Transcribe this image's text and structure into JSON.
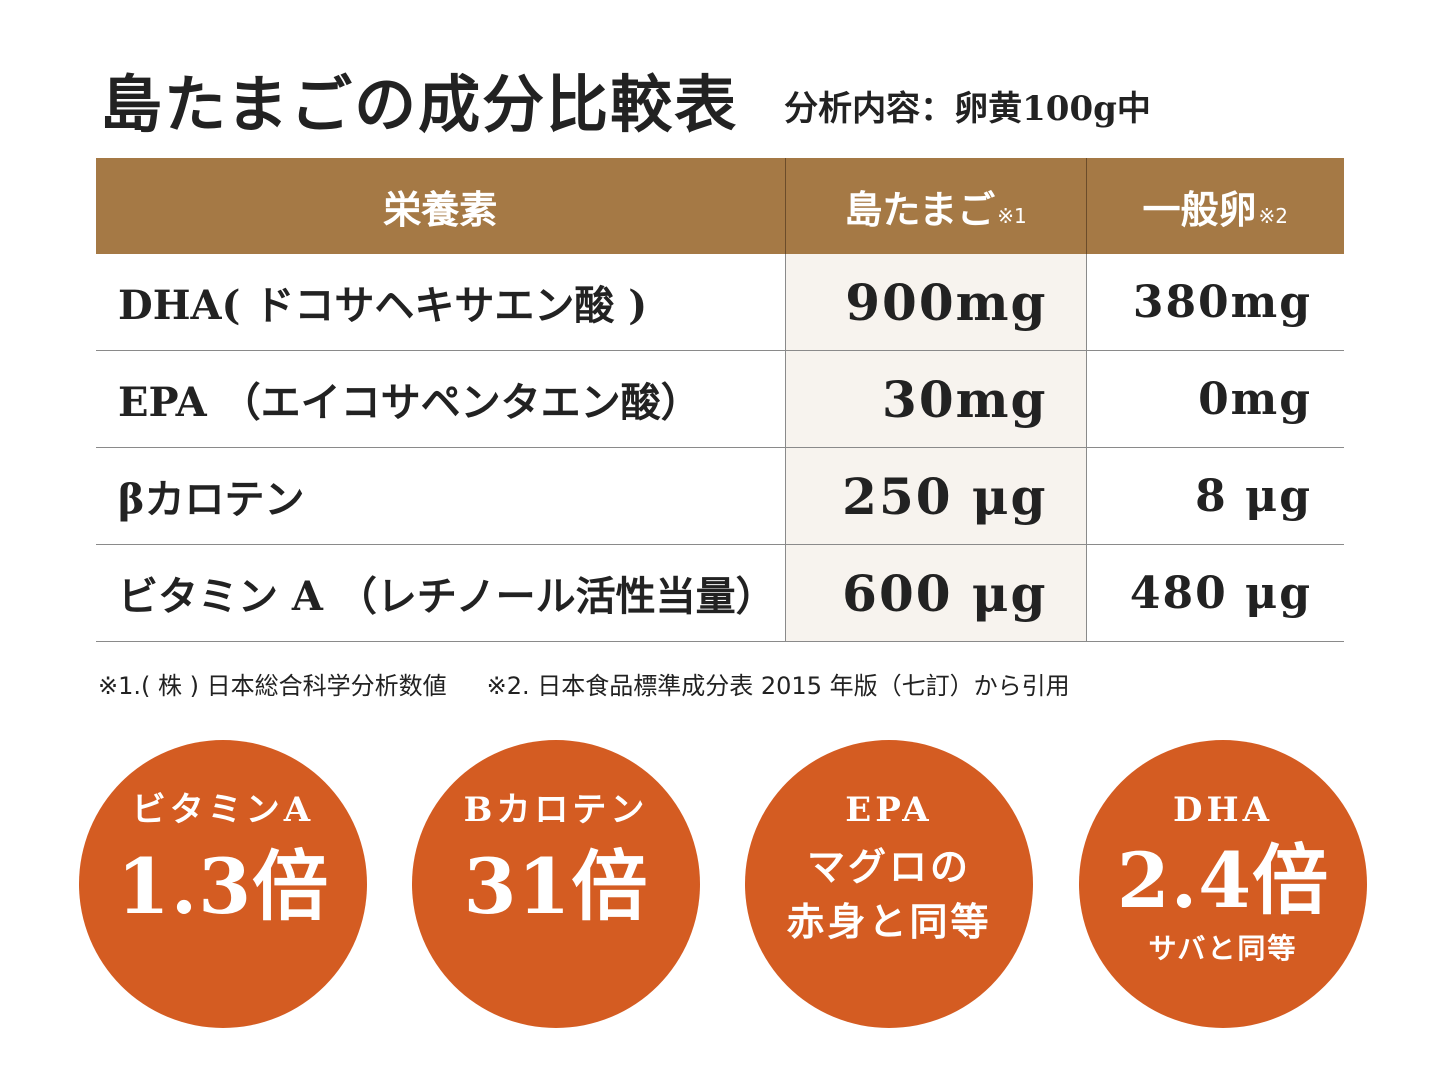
{
  "title": {
    "main": "島たまごの成分比較表",
    "sub": "分析内容：卵黄100g中"
  },
  "table": {
    "headers": [
      {
        "label": "栄養素",
        "mark": ""
      },
      {
        "label": "島たまご",
        "mark": "※1"
      },
      {
        "label": "一般卵",
        "mark": "※2"
      }
    ],
    "rows": [
      {
        "nutrient": "DHA( ドコサヘキサエン酸 )",
        "shima": "900mg",
        "general": "380mg"
      },
      {
        "nutrient": "EPA （エイコサペンタエン酸）",
        "shima": "30mg",
        "general": "0mg"
      },
      {
        "nutrient": "βカロテン",
        "shima": "250 μg",
        "general": "8 μg"
      },
      {
        "nutrient": "ビタミン A （レチノール活性当量）",
        "shima": "600 μg",
        "general": "480 μg"
      }
    ]
  },
  "footnotes": [
    "※1.( 株 ) 日本総合科学分析数値",
    "※2. 日本食品標準成分表 2015 年版（七訂）から引用"
  ],
  "highlights": [
    {
      "label": "ビタミンA",
      "value": "1.3倍"
    },
    {
      "label": "Bカロテン",
      "value": "31倍"
    },
    {
      "label": "EPA",
      "line1": "マグロの",
      "line2": "赤身と同等"
    },
    {
      "label": "DHA",
      "value": "2.4倍",
      "note": "サバと同等"
    }
  ],
  "colors": {
    "header_bg": "#a57945",
    "circle_bg": "#d45c22",
    "highlight_column_bg": "#f7f3ee"
  }
}
